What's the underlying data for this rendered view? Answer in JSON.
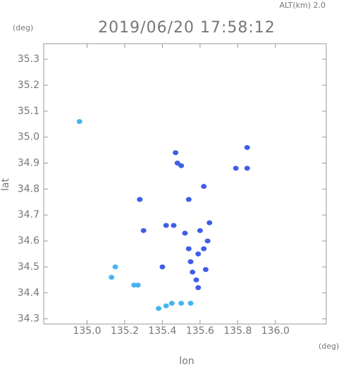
{
  "chart_data": {
    "type": "scatter",
    "title": "2019/06/20 17:58:12",
    "subtitle": "ALT(km) 2.0",
    "y_unit": "(deg)",
    "x_unit": "(deg)",
    "xlabel": "lon",
    "ylabel": "lat",
    "xlim": [
      134.77,
      136.27
    ],
    "ylim": [
      34.28,
      35.36
    ],
    "xticks": [
      {
        "value": 135,
        "label": "135.0"
      },
      135.2,
      135.4,
      135.6,
      135.8,
      {
        "value": 136,
        "label": "136.0"
      }
    ],
    "yticks": [
      34.3,
      34.4,
      34.5,
      34.6,
      34.7,
      34.8,
      34.9,
      {
        "value": 35,
        "label": "35.0"
      },
      35.1,
      35.2,
      35.3
    ],
    "series": [
      {
        "color": "#45b4f0",
        "x": [
          134.96,
          135.13,
          135.15,
          135.25,
          135.27,
          135.38,
          135.42,
          135.45,
          135.5,
          135.55
        ],
        "values": [
          35.06,
          34.46,
          34.5,
          34.43,
          34.43,
          34.34,
          34.35,
          34.36,
          34.36,
          34.36
        ]
      },
      {
        "color": "#3f5ee6",
        "x": [
          135.48,
          135.5,
          135.47,
          135.79,
          135.85,
          135.85,
          135.4,
          135.42,
          135.46,
          135.52,
          135.54,
          135.55,
          135.56,
          135.58,
          135.59,
          135.62,
          135.64,
          135.65,
          135.63,
          135.59,
          135.6,
          135.54,
          135.62,
          135.3,
          135.28
        ],
        "values": [
          34.9,
          34.89,
          34.94,
          34.88,
          34.88,
          34.96,
          34.5,
          34.66,
          34.66,
          34.63,
          34.57,
          34.52,
          34.48,
          34.45,
          34.55,
          34.57,
          34.6,
          34.67,
          34.49,
          34.42,
          34.64,
          34.76,
          34.81,
          34.64,
          34.76
        ]
      }
    ]
  }
}
